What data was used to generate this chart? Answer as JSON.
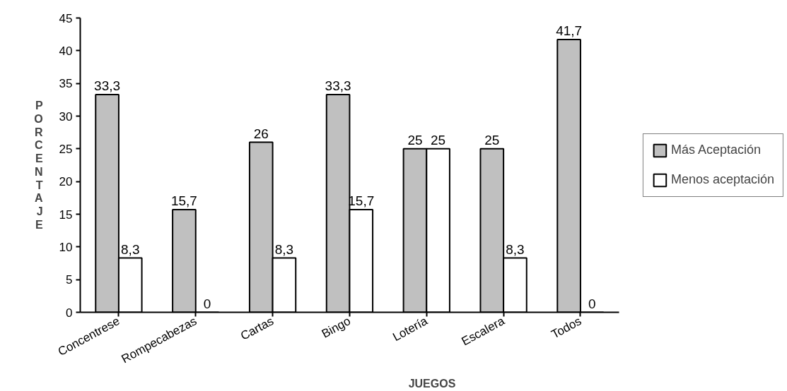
{
  "chart_data": {
    "type": "bar",
    "xlabel": "JUEGOS",
    "ylabel": "PORCENTAJE",
    "categories": [
      "Concentrese",
      "Rompecabezas",
      "Cartas",
      "Bingo",
      "Lotería",
      "Escalera",
      "Todos"
    ],
    "series": [
      {
        "name": "Más Aceptación",
        "color": "#c0c0c0",
        "values": [
          33.3,
          15.7,
          26,
          33.3,
          25,
          25,
          41.7
        ],
        "value_labels": [
          "33,3",
          "15,7",
          "26",
          "33,3",
          "25",
          "25",
          "41,7"
        ]
      },
      {
        "name": "Menos aceptación",
        "color": "#ffffff",
        "values": [
          8.3,
          0,
          8.3,
          15.7,
          25,
          8.3,
          0
        ],
        "value_labels": [
          "8,3",
          "0",
          "8,3",
          "15,7",
          "25",
          "8,3",
          "0"
        ]
      }
    ],
    "ylim": [
      0,
      45
    ],
    "yticks": [
      0,
      5,
      10,
      15,
      20,
      25,
      30,
      35,
      40,
      45
    ],
    "grid": false,
    "legend": "right"
  }
}
